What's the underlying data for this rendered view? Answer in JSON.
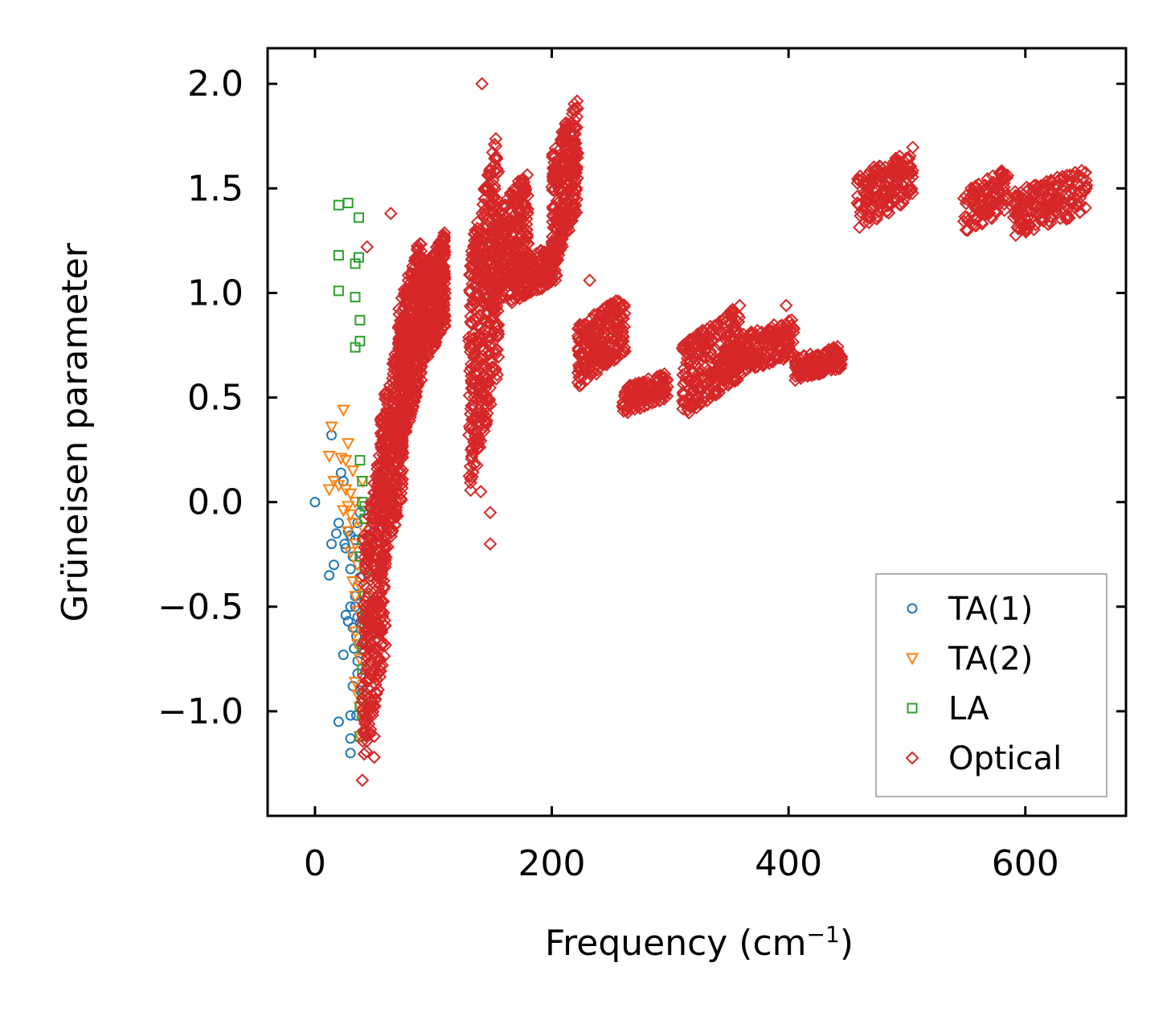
{
  "chart_data": {
    "type": "scatter",
    "title": "",
    "xlabel": "Frequency (cm",
    "xlabel_sup": "−1",
    "xlabel_end": ")",
    "ylabel": "Grüneisen parameter",
    "xlim": [
      -40,
      685
    ],
    "ylim": [
      -1.5,
      2.17
    ],
    "xticks": [
      0,
      200,
      400,
      600
    ],
    "xtick_labels": [
      "0",
      "200",
      "400",
      "600"
    ],
    "yticks": [
      -1.0,
      -0.5,
      0.0,
      0.5,
      1.0,
      1.5,
      2.0
    ],
    "ytick_labels": [
      "−1.0",
      "−0.5",
      "0.0",
      "0.5",
      "1.0",
      "1.5",
      "2.0"
    ],
    "grid": false,
    "legend_position": "bottom-right",
    "series": [
      {
        "name": "TA(1)",
        "marker": "circle",
        "color": "#1f77b4",
        "points": [
          [
            0,
            0.0
          ],
          [
            14,
            0.32
          ],
          [
            22,
            0.14
          ],
          [
            24,
            0.1
          ],
          [
            20,
            -0.1
          ],
          [
            18,
            -0.15
          ],
          [
            25,
            -0.2
          ],
          [
            14,
            -0.2
          ],
          [
            12,
            -0.35
          ],
          [
            16,
            -0.3
          ],
          [
            26,
            -0.22
          ],
          [
            30,
            -0.16
          ],
          [
            28,
            -0.14
          ],
          [
            32,
            -0.26
          ],
          [
            34,
            -0.18
          ],
          [
            36,
            -0.4
          ],
          [
            30,
            -0.32
          ],
          [
            26,
            -0.54
          ],
          [
            30,
            -0.5
          ],
          [
            34,
            -0.5
          ],
          [
            28,
            -0.57
          ],
          [
            32,
            -0.6
          ],
          [
            35,
            -0.64
          ],
          [
            33,
            -0.7
          ],
          [
            37,
            -0.68
          ],
          [
            36,
            -0.76
          ],
          [
            24,
            -0.73
          ],
          [
            36,
            -0.82
          ],
          [
            38,
            -0.9
          ],
          [
            32,
            -0.88
          ],
          [
            20,
            -1.05
          ],
          [
            30,
            -1.02
          ],
          [
            35,
            -1.02
          ],
          [
            30,
            -1.13
          ],
          [
            30,
            -1.2
          ],
          [
            38,
            -0.58
          ],
          [
            36,
            -0.55
          ],
          [
            34,
            -0.45
          ],
          [
            38,
            -0.36
          ],
          [
            36,
            -0.1
          ],
          [
            38,
            -0.05
          ]
        ]
      },
      {
        "name": "TA(2)",
        "marker": "triangle-down",
        "color": "#ff7f0e",
        "points": [
          [
            24,
            0.44
          ],
          [
            14,
            0.36
          ],
          [
            28,
            0.28
          ],
          [
            12,
            0.22
          ],
          [
            22,
            0.21
          ],
          [
            26,
            0.2
          ],
          [
            32,
            0.15
          ],
          [
            16,
            0.1
          ],
          [
            12,
            0.06
          ],
          [
            20,
            0.08
          ],
          [
            26,
            0.06
          ],
          [
            30,
            0.04
          ],
          [
            28,
            -0.02
          ],
          [
            34,
            0.0
          ],
          [
            24,
            -0.04
          ],
          [
            30,
            -0.06
          ],
          [
            32,
            -0.1
          ],
          [
            28,
            -0.14
          ],
          [
            34,
            -0.2
          ],
          [
            30,
            -0.24
          ],
          [
            36,
            -0.3
          ],
          [
            32,
            -0.38
          ],
          [
            34,
            -0.45
          ],
          [
            36,
            -0.52
          ],
          [
            34,
            -0.62
          ],
          [
            36,
            -0.68
          ],
          [
            38,
            -0.75
          ],
          [
            34,
            -0.86
          ],
          [
            36,
            -0.92
          ],
          [
            38,
            -0.98
          ],
          [
            40,
            -1.05
          ],
          [
            38,
            -1.12
          ],
          [
            38,
            -0.4
          ],
          [
            40,
            -0.12
          ],
          [
            40,
            0.1
          ]
        ]
      },
      {
        "name": "LA",
        "marker": "square",
        "color": "#2ca02c",
        "points": [
          [
            20,
            1.42
          ],
          [
            28,
            1.43
          ],
          [
            37,
            1.36
          ],
          [
            20,
            1.18
          ],
          [
            34,
            1.14
          ],
          [
            37,
            1.17
          ],
          [
            20,
            1.01
          ],
          [
            34,
            0.98
          ],
          [
            38,
            0.87
          ],
          [
            38,
            0.77
          ],
          [
            34,
            0.74
          ],
          [
            38,
            0.2
          ],
          [
            40,
            0.1
          ],
          [
            40,
            0.0
          ],
          [
            42,
            -0.08
          ],
          [
            40,
            -0.18
          ],
          [
            38,
            -0.26
          ],
          [
            42,
            -0.32
          ],
          [
            42,
            -0.45
          ],
          [
            40,
            -0.55
          ],
          [
            42,
            -0.6
          ],
          [
            40,
            -0.7
          ],
          [
            40,
            -0.8
          ],
          [
            40,
            -0.92
          ],
          [
            38,
            -0.98
          ],
          [
            40,
            -1.02
          ],
          [
            38,
            -1.12
          ],
          [
            44,
            -0.52
          ],
          [
            42,
            -0.02
          ]
        ]
      },
      {
        "name": "Optical",
        "marker": "diamond",
        "color": "#d62728",
        "points": [],
        "points_note": "dense clusters listed as [freq_min, freq_max, gamma_min, gamma_max, approx count]",
        "clusters": [
          [
            40,
            60,
            -1.3,
            0.4,
            320
          ],
          [
            55,
            75,
            -0.4,
            0.9,
            300
          ],
          [
            70,
            90,
            0.2,
            1.3,
            400
          ],
          [
            88,
            110,
            0.6,
            1.3,
            350
          ],
          [
            130,
            155,
            0.0,
            1.8,
            420
          ],
          [
            150,
            180,
            0.9,
            1.6,
            280
          ],
          [
            165,
            205,
            0.95,
            1.25,
            200
          ],
          [
            200,
            222,
            1.1,
            1.95,
            260
          ],
          [
            222,
            262,
            0.55,
            1.0,
            240
          ],
          [
            260,
            298,
            0.42,
            0.62,
            140
          ],
          [
            310,
            360,
            0.4,
            0.95,
            280
          ],
          [
            350,
            405,
            0.6,
            0.88,
            220
          ],
          [
            405,
            445,
            0.58,
            0.75,
            180
          ],
          [
            458,
            505,
            1.3,
            1.7,
            180
          ],
          [
            548,
            585,
            1.28,
            1.6,
            120
          ],
          [
            590,
            652,
            1.27,
            1.6,
            200
          ]
        ],
        "outliers": [
          [
            141,
            2.0
          ],
          [
            148,
            -0.05
          ],
          [
            148,
            -0.2
          ],
          [
            40,
            -1.33
          ],
          [
            50,
            -1.22
          ],
          [
            50,
            -1.12
          ],
          [
            232,
            1.06
          ],
          [
            398,
            0.94
          ],
          [
            140,
            0.05
          ],
          [
            44,
            1.22
          ],
          [
            64,
            1.38
          ]
        ]
      }
    ]
  }
}
